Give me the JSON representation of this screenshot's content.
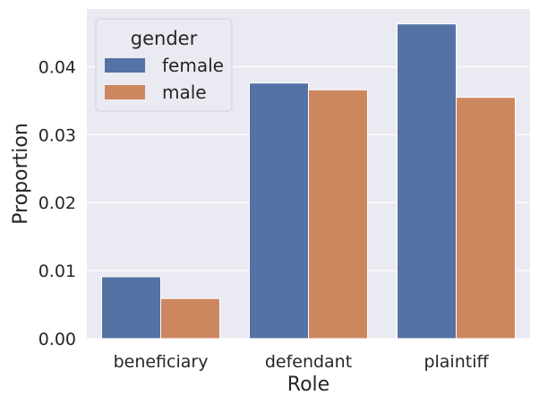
{
  "chart_data": {
    "type": "bar",
    "xlabel": "Role",
    "ylabel": "Proportion",
    "categories": [
      "beneficiary",
      "defendant",
      "plaintiff"
    ],
    "series": [
      {
        "name": "female",
        "values": [
          0.0091,
          0.0376,
          0.0463
        ]
      },
      {
        "name": "male",
        "values": [
          0.0059,
          0.0366,
          0.0355
        ]
      }
    ],
    "ylim": [
      0,
      0.0485
    ],
    "yticks": [
      0.0,
      0.01,
      0.02,
      0.03,
      0.04
    ],
    "ytick_labels": [
      "0.00",
      "0.01",
      "0.02",
      "0.03",
      "0.04"
    ],
    "grid": true,
    "legend": {
      "title": "gender",
      "position": "top-left"
    }
  },
  "colors": {
    "female": "#5572a4",
    "male": "#cd875f",
    "plot_background": "#eaeaf2",
    "grid": "#ffffff",
    "text": "#262626"
  }
}
